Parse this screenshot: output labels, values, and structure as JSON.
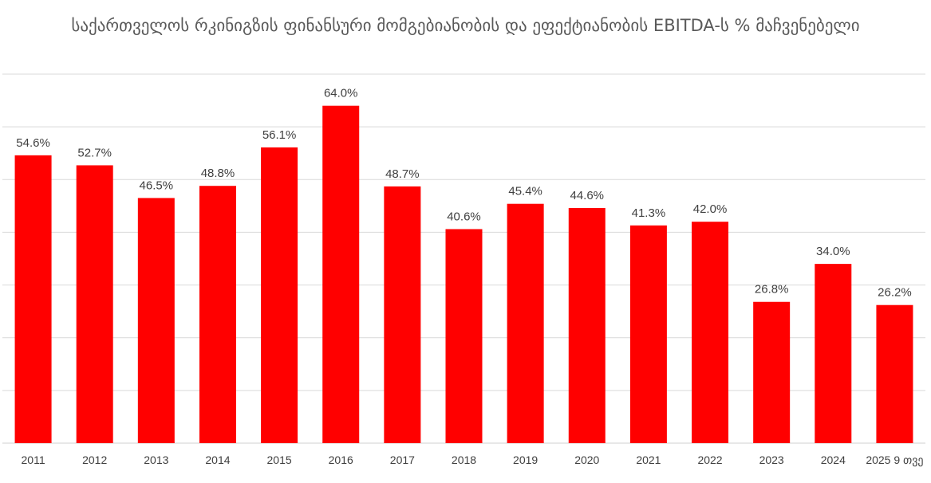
{
  "chart_data": {
    "type": "bar",
    "title": "საქართველოს რკინიგზის ფინანსური მომგებიანობის და ეფექტიანობის EBITDA-ს % მაჩვენებელი",
    "xlabel": "",
    "ylabel": "",
    "ylim": [
      0,
      70
    ],
    "grid": true,
    "legend": "none",
    "categories": [
      "2011",
      "2012",
      "2013",
      "2014",
      "2015",
      "2016",
      "2017",
      "2018",
      "2019",
      "2020",
      "2021",
      "2022",
      "2023",
      "2024",
      "2025 9 თვე"
    ],
    "values": [
      54.6,
      52.7,
      46.5,
      48.8,
      56.1,
      64.0,
      48.7,
      40.6,
      45.4,
      44.6,
      41.3,
      42.0,
      26.8,
      34.0,
      26.2
    ],
    "data_labels": [
      "54.6%",
      "52.7%",
      "46.5%",
      "48.8%",
      "56.1%",
      "64.0%",
      "48.7%",
      "40.6%",
      "45.4%",
      "44.6%",
      "41.3%",
      "42.0%",
      "26.8%",
      "34.0%",
      "26.2%"
    ],
    "bar_color": "#FF0000"
  }
}
